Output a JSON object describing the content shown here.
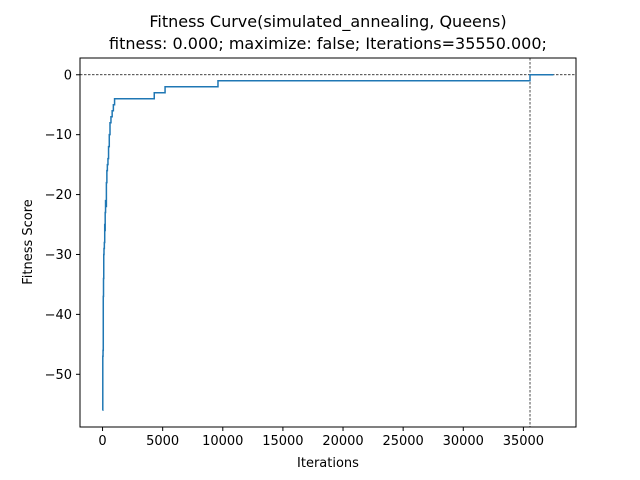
{
  "chart_data": {
    "type": "line",
    "title": "Fitness Curve(simulated_annealing, Queens)",
    "subtitle": "fitness: 0.000; maximize: false; Iterations=35550.000;",
    "xlabel": "Iterations",
    "ylabel": "Fitness Score",
    "xlim": [
      -1875,
      39375
    ],
    "ylim": [
      -58.8,
      2.8
    ],
    "grid": false,
    "x_ticks": [
      {
        "value": 0,
        "label": "0"
      },
      {
        "value": 5000,
        "label": "5000"
      },
      {
        "value": 10000,
        "label": "10000"
      },
      {
        "value": 15000,
        "label": "15000"
      },
      {
        "value": 20000,
        "label": "20000"
      },
      {
        "value": 25000,
        "label": "25000"
      },
      {
        "value": 30000,
        "label": "30000"
      },
      {
        "value": 35000,
        "label": "35000"
      }
    ],
    "y_ticks": [
      {
        "value": 0,
        "label": "0"
      },
      {
        "value": -10,
        "label": "−10"
      },
      {
        "value": -20,
        "label": "−20"
      },
      {
        "value": -30,
        "label": "−30"
      },
      {
        "value": -40,
        "label": "−40"
      },
      {
        "value": -50,
        "label": "−50"
      }
    ],
    "reference_lines": [
      {
        "axis": "y",
        "value": 0,
        "style": "dashed",
        "color": "#000000"
      },
      {
        "axis": "x",
        "value": 35550,
        "style": "dashed",
        "color": "#000000"
      }
    ],
    "series": [
      {
        "color": "#1f77b4",
        "step": true,
        "x": [
          0,
          20,
          40,
          60,
          80,
          100,
          120,
          150,
          180,
          200,
          220,
          250,
          280,
          320,
          360,
          400,
          450,
          500,
          560,
          620,
          700,
          800,
          900,
          1000,
          4300,
          5200,
          9600,
          35550,
          37500
        ],
        "y": [
          -56,
          -47,
          -46,
          -37,
          -34,
          -30,
          -29,
          -28,
          -25,
          -26,
          -23,
          -21,
          -22,
          -18,
          -16,
          -15,
          -14,
          -12,
          -10,
          -8,
          -7,
          -6,
          -5,
          -4,
          -3,
          -2,
          -1,
          0,
          0
        ]
      }
    ]
  }
}
